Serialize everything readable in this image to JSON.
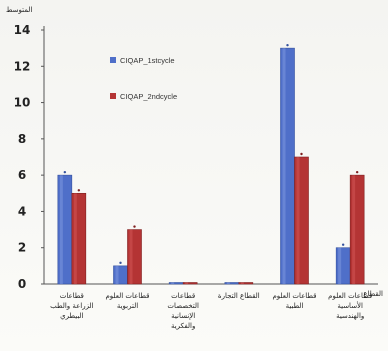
{
  "chart_data": {
    "type": "bar",
    "title": "",
    "ylabel": "المتوسط",
    "xlabel": "القطاع",
    "ylim": [
      0,
      14
    ],
    "yticks": [
      0,
      2,
      4,
      6,
      8,
      10,
      12,
      14
    ],
    "grid": false,
    "legend_position": "left-inside",
    "categories": [
      [
        "قطاعات",
        "الزراعة والطب",
        "البيطري"
      ],
      [
        "قطاعات العلوم",
        "التربوية"
      ],
      [
        "قطاعات",
        "التخصصات",
        "الإنسانية",
        "والفكرية"
      ],
      [
        "القطاع التجارة"
      ],
      [
        "قطاعات العلوم",
        "الطبية"
      ],
      [
        "قطاعات العلوم",
        "الأساسية",
        "والهندسية"
      ]
    ],
    "series": [
      {
        "name": "CIQAP_1stcycle",
        "color": "#4f6fc9",
        "values": [
          6,
          1,
          0,
          0,
          13,
          2
        ]
      },
      {
        "name": "CIQAP_2ndcycle",
        "color": "#b43434",
        "values": [
          5,
          3,
          0,
          0,
          7,
          6
        ]
      }
    ]
  }
}
